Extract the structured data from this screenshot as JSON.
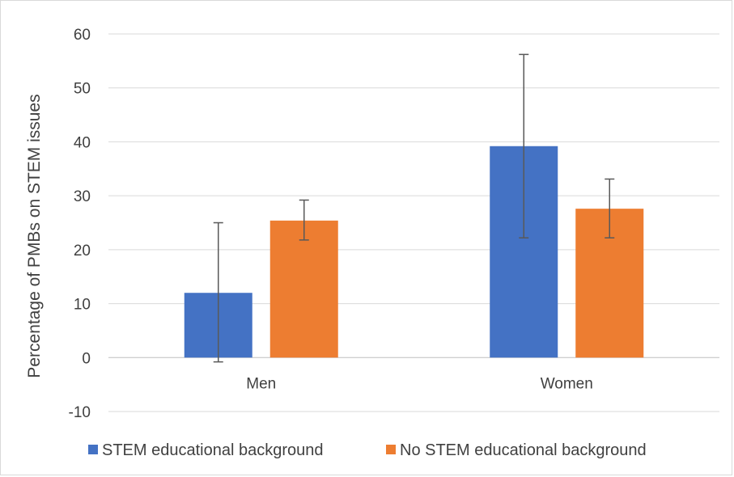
{
  "chart_data": {
    "type": "bar",
    "title": "",
    "xlabel": "",
    "ylabel": "Percentage of PMBs on STEM issues",
    "categories": [
      "Men",
      "Women"
    ],
    "ylim": [
      -10,
      60
    ],
    "yticks": [
      -10,
      0,
      10,
      20,
      30,
      40,
      50,
      60
    ],
    "grid": true,
    "legend_position": "bottom",
    "series": [
      {
        "name": "STEM educational background",
        "color": "#4472c4",
        "values": [
          12,
          39.2
        ],
        "error_low": [
          -0.8,
          22.2
        ],
        "error_high": [
          25,
          56.2
        ]
      },
      {
        "name": "No STEM educational background",
        "color": "#ed7d31",
        "values": [
          25.4,
          27.6
        ],
        "error_low": [
          21.8,
          22.2
        ],
        "error_high": [
          29.2,
          33.1
        ]
      }
    ]
  }
}
